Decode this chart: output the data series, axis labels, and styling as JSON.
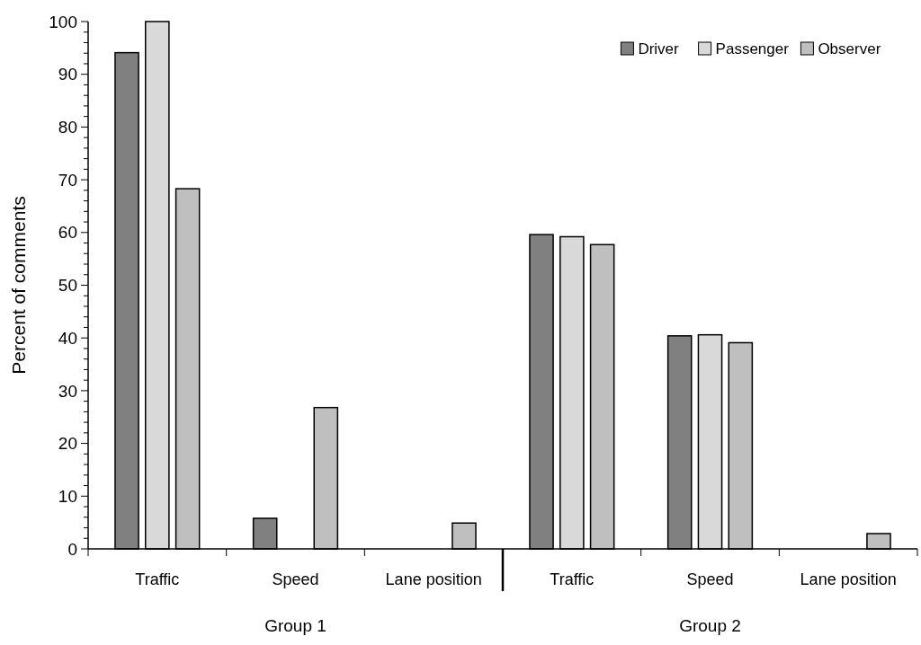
{
  "chart_data": {
    "type": "bar",
    "ylabel": "Percent of comments",
    "categories": [
      "Traffic",
      "Speed",
      "Lane position",
      "Traffic",
      "Speed",
      "Lane position"
    ],
    "series": [
      {
        "name": "Driver",
        "color": "#808080",
        "values": [
          94.1,
          5.8,
          null,
          59.6,
          40.4,
          null
        ]
      },
      {
        "name": "Passenger",
        "color": "#d9d9d9",
        "values": [
          100,
          null,
          null,
          59.2,
          40.6,
          null
        ]
      },
      {
        "name": "Observer",
        "color": "#bfbfbf",
        "values": [
          68.3,
          26.8,
          4.9,
          57.7,
          39.1,
          2.9
        ]
      }
    ],
    "ylim": [
      0,
      100
    ],
    "yticks": [
      0,
      {
        "value": 2,
        "label": null
      },
      {
        "value": 4,
        "label": null
      },
      {
        "value": 6,
        "label": null
      },
      {
        "value": 8,
        "label": null
      },
      10,
      {
        "value": 12,
        "label": null
      },
      {
        "value": 14,
        "label": null
      },
      {
        "value": 16,
        "label": null
      },
      {
        "value": 18,
        "label": null
      },
      20,
      {
        "value": 22,
        "label": null
      },
      {
        "value": 24,
        "label": null
      },
      {
        "value": 26,
        "label": null
      },
      {
        "value": 28,
        "label": null
      },
      30,
      {
        "value": 32,
        "label": null
      },
      {
        "value": 34,
        "label": null
      },
      {
        "value": 36,
        "label": null
      },
      {
        "value": 38,
        "label": null
      },
      40,
      {
        "value": 42,
        "label": null
      },
      {
        "value": 44,
        "label": null
      },
      {
        "value": 46,
        "label": null
      },
      {
        "value": 48,
        "label": null
      },
      50,
      {
        "value": 52,
        "label": null
      },
      {
        "value": 54,
        "label": null
      },
      {
        "value": 56,
        "label": null
      },
      {
        "value": 58,
        "label": null
      },
      60,
      {
        "value": 62,
        "label": null
      },
      {
        "value": 64,
        "label": null
      },
      {
        "value": 66,
        "label": null
      },
      {
        "value": 68,
        "label": null
      },
      70,
      {
        "value": 72,
        "label": null
      },
      {
        "value": 74,
        "label": null
      },
      {
        "value": 76,
        "label": null
      },
      {
        "value": 78,
        "label": null
      },
      80,
      {
        "value": 82,
        "label": null
      },
      {
        "value": 84,
        "label": null
      },
      {
        "value": 86,
        "label": null
      },
      {
        "value": 88,
        "label": null
      },
      90,
      {
        "value": 92,
        "label": null
      },
      {
        "value": 94,
        "label": null
      },
      {
        "value": 96,
        "label": null
      },
      {
        "value": 98,
        "label": null
      },
      100
    ],
    "annotations": [
      "Group 1",
      "Group 2"
    ],
    "grid": false,
    "legend": "top right"
  }
}
